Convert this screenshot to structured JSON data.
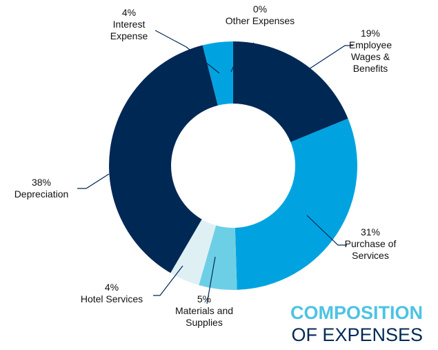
{
  "chart_data": {
    "type": "donut",
    "title": "COMPOSITION",
    "subtitle": "OF EXPENSES",
    "categories": [
      "Employee Wages & Benefits",
      "Purchase of Services",
      "Materials and Supplies",
      "Hotel Services",
      "Depreciation",
      "Interest Expense",
      "Other Expenses"
    ],
    "values": [
      19,
      31,
      5,
      4,
      38,
      4,
      0
    ],
    "value_labels": [
      "19%",
      "31%",
      "5%",
      "4%",
      "38%",
      "4%",
      "0%"
    ],
    "colors": [
      "#002855",
      "#00a3e0",
      "#6dcfe6",
      "#dff0f5",
      "#002855",
      "#00a3e0",
      "#6dcfe6"
    ]
  }
}
